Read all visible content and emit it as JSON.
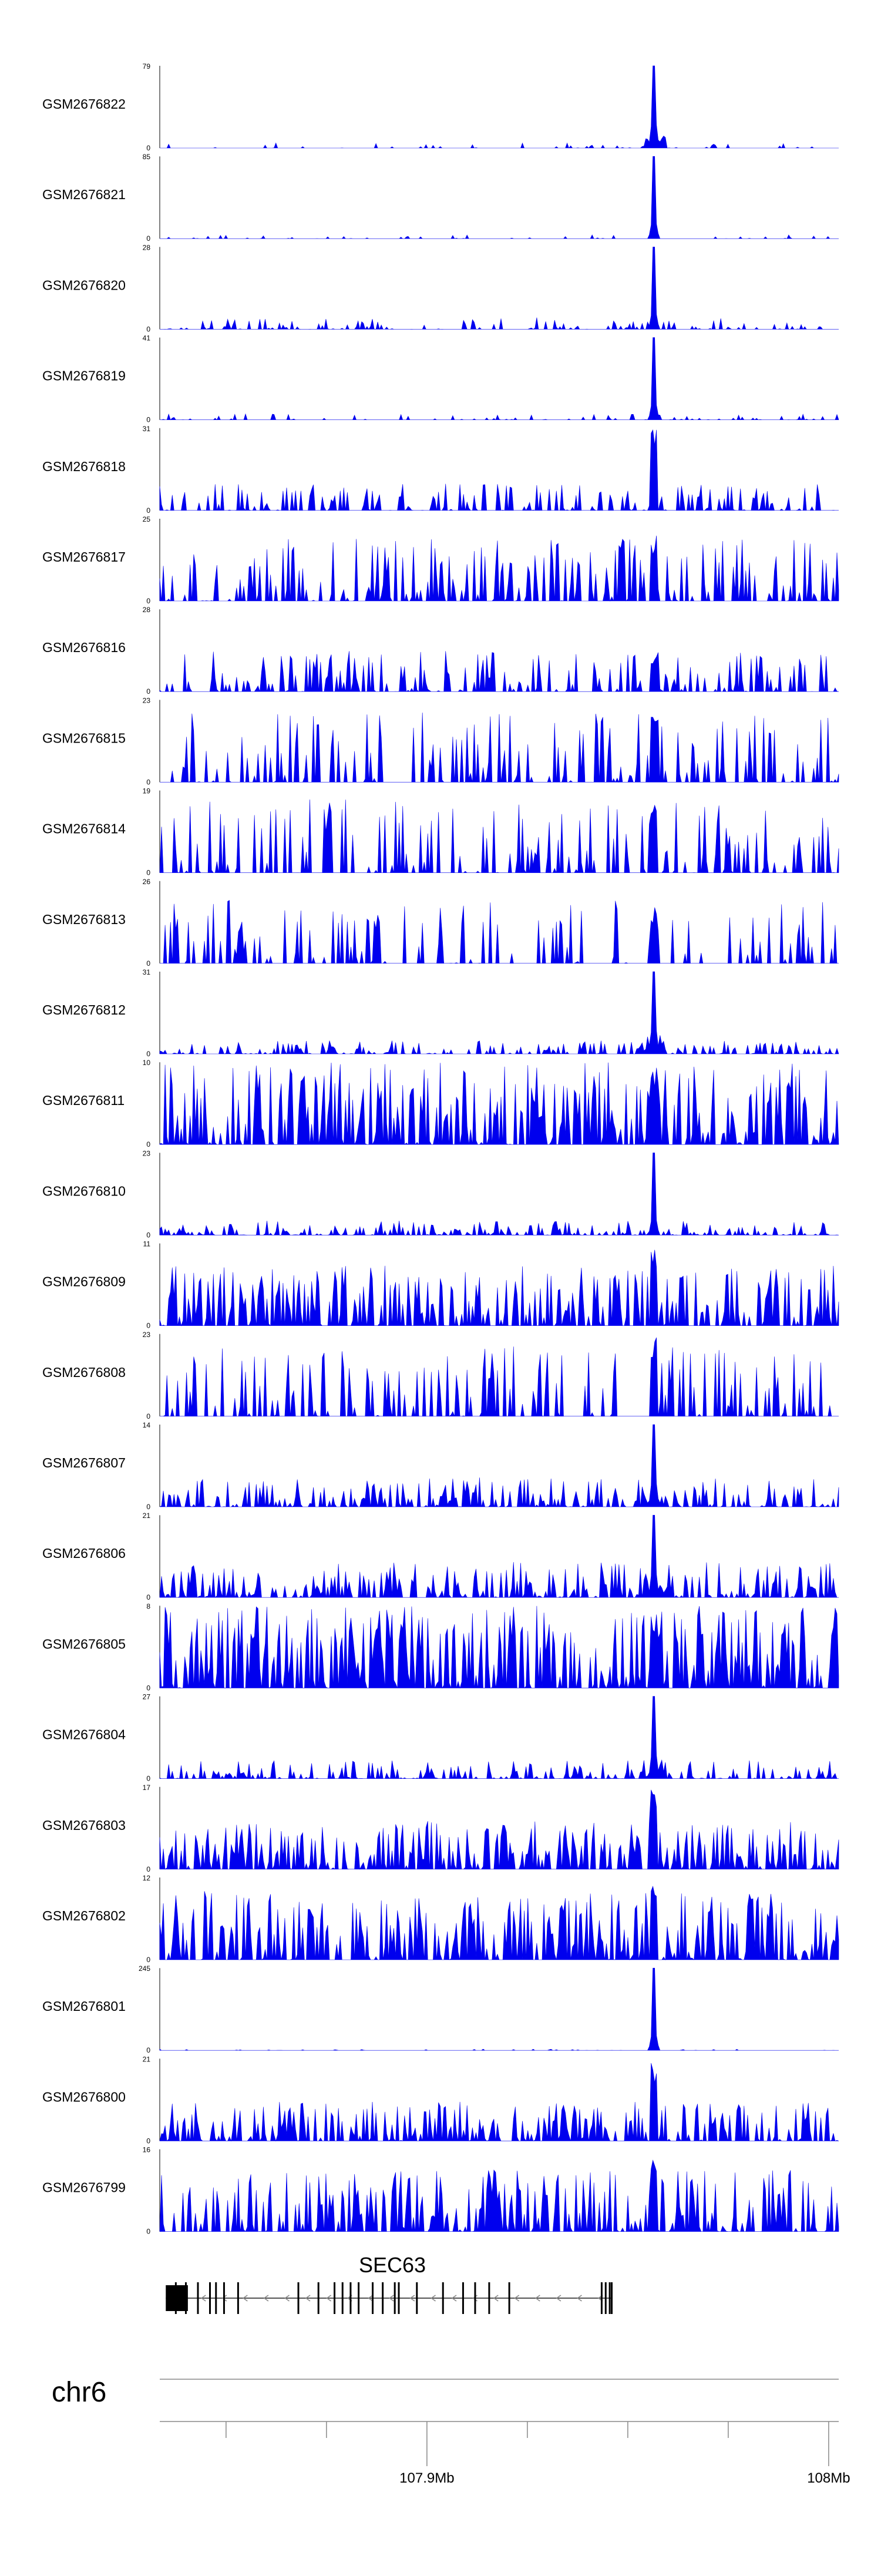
{
  "chart_data": {
    "type": "area",
    "color": "#0000ee",
    "x_domain": [
      107.8335,
      108.0025
    ],
    "tracks": [
      {
        "name": "GSM2676822",
        "ymax": "79",
        "ymin": "0",
        "style": "peak",
        "peak": 79,
        "noise": 5,
        "density": 0.15
      },
      {
        "name": "GSM2676821",
        "ymax": "85",
        "ymin": "0",
        "style": "peak",
        "peak": 85,
        "noise": 4,
        "density": 0.12
      },
      {
        "name": "GSM2676820",
        "ymax": "28",
        "ymin": "0",
        "style": "peak",
        "peak": 28,
        "noise": 4,
        "density": 0.35
      },
      {
        "name": "GSM2676819",
        "ymax": "41",
        "ymin": "0",
        "style": "peak",
        "peak": 41,
        "noise": 3,
        "density": 0.2
      },
      {
        "name": "GSM2676818",
        "ymax": "31",
        "ymin": "0",
        "style": "broad",
        "peak": 31,
        "noise": 10,
        "density": 0.45
      },
      {
        "name": "GSM2676817",
        "ymax": "25",
        "ymin": "0",
        "style": "broad",
        "peak": 20,
        "noise": 19,
        "density": 0.5
      },
      {
        "name": "GSM2676816",
        "ymax": "28",
        "ymin": "0",
        "style": "broad",
        "peak": 12,
        "noise": 14,
        "density": 0.45
      },
      {
        "name": "GSM2676815",
        "ymax": "23",
        "ymin": "0",
        "style": "spiky",
        "peak": 20,
        "noise": 20,
        "density": 0.3
      },
      {
        "name": "GSM2676814",
        "ymax": "19",
        "ymin": "0",
        "style": "spiky",
        "peak": 16,
        "noise": 17,
        "density": 0.35
      },
      {
        "name": "GSM2676813",
        "ymax": "26",
        "ymin": "0",
        "style": "spiky",
        "peak": 18,
        "noise": 20,
        "density": 0.3
      },
      {
        "name": "GSM2676812",
        "ymax": "31",
        "ymin": "0",
        "style": "peak",
        "peak": 31,
        "noise": 5,
        "density": 0.5
      },
      {
        "name": "GSM2676811",
        "ymax": "10",
        "ymin": "0",
        "style": "dense",
        "peak": 10,
        "noise": 10,
        "density": 0.65
      },
      {
        "name": "GSM2676810",
        "ymax": "23",
        "ymin": "0",
        "style": "peak",
        "peak": 23,
        "noise": 4,
        "density": 0.6
      },
      {
        "name": "GSM2676809",
        "ymax": "11",
        "ymin": "0",
        "style": "dense",
        "peak": 11,
        "noise": 8,
        "density": 0.65
      },
      {
        "name": "GSM2676808",
        "ymax": "23",
        "ymin": "0",
        "style": "spiky",
        "peak": 22,
        "noise": 20,
        "density": 0.35
      },
      {
        "name": "GSM2676807",
        "ymax": "14",
        "ymin": "0",
        "style": "peak",
        "peak": 14,
        "noise": 5,
        "density": 0.65
      },
      {
        "name": "GSM2676806",
        "ymax": "21",
        "ymin": "0",
        "style": "peak",
        "peak": 21,
        "noise": 9,
        "density": 0.6
      },
      {
        "name": "GSM2676805",
        "ymax": "8",
        "ymin": "0",
        "style": "dense",
        "peak": 7,
        "noise": 8,
        "density": 0.75
      },
      {
        "name": "GSM2676804",
        "ymax": "27",
        "ymin": "0",
        "style": "peak",
        "peak": 27,
        "noise": 6,
        "density": 0.55
      },
      {
        "name": "GSM2676803",
        "ymax": "17",
        "ymin": "0",
        "style": "dense",
        "peak": 17,
        "noise": 10,
        "density": 0.65
      },
      {
        "name": "GSM2676802",
        "ymax": "12",
        "ymin": "0",
        "style": "dense",
        "peak": 12,
        "noise": 10,
        "density": 0.65
      },
      {
        "name": "GSM2676801",
        "ymax": "245",
        "ymin": "0",
        "style": "peak",
        "peak": 245,
        "noise": 4,
        "density": 0.1
      },
      {
        "name": "GSM2676800",
        "ymax": "21",
        "ymin": "0",
        "style": "dense",
        "peak": 21,
        "noise": 10,
        "density": 0.6
      },
      {
        "name": "GSM2676799",
        "ymax": "16",
        "ymin": "0",
        "style": "dense",
        "peak": 14,
        "noise": 12,
        "density": 0.6
      }
    ],
    "peak_position_mb": 107.9565,
    "gene": {
      "name": "SEC63",
      "start_mb": 107.835,
      "end_mb": 107.946,
      "strand": "-",
      "exons_mb": [
        107.8375,
        107.84,
        107.843,
        107.846,
        107.8475,
        107.8495,
        107.853,
        107.868,
        107.873,
        107.877,
        107.879,
        107.881,
        107.883,
        107.8865,
        107.889,
        107.892,
        107.893,
        107.8975,
        107.904,
        107.909,
        107.912,
        107.9155,
        107.9205,
        107.9435,
        107.9445,
        107.9455,
        107.946
      ]
    },
    "chromosome": "chr6",
    "axis": {
      "range_mb": [
        107.8335,
        108.0025
      ],
      "ticks_mb": [
        107.85,
        107.875,
        107.9,
        107.925,
        107.95,
        107.975,
        108.0
      ],
      "tick_labels": [
        {
          "at_mb": 107.9,
          "label": "107.9Mb"
        },
        {
          "at_mb": 108.0,
          "label": "108Mb"
        }
      ]
    }
  }
}
